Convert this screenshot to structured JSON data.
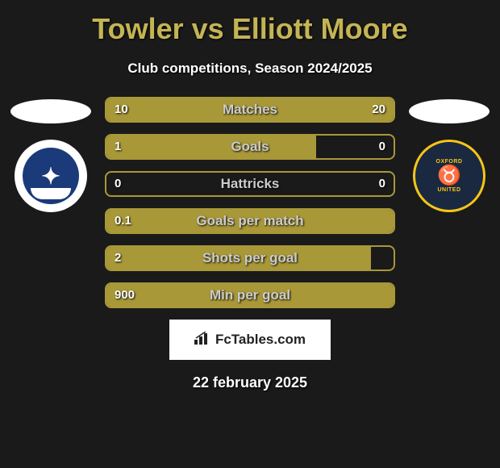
{
  "title": "Towler vs Elliott Moore",
  "subtitle": "Club competitions, Season 2024/2025",
  "player_left": {
    "name": "Towler",
    "club": "Portsmouth"
  },
  "player_right": {
    "name": "Elliott Moore",
    "club": "Oxford United"
  },
  "stats": [
    {
      "label": "Matches",
      "left_val": "10",
      "right_val": "20",
      "left_pct": 33.3,
      "right_pct": 66.7
    },
    {
      "label": "Goals",
      "left_val": "1",
      "right_val": "0",
      "left_pct": 73,
      "right_pct": 0
    },
    {
      "label": "Hattricks",
      "left_val": "0",
      "right_val": "0",
      "left_pct": 0,
      "right_pct": 0
    },
    {
      "label": "Goals per match",
      "left_val": "0.1",
      "right_val": "",
      "left_pct": 100,
      "right_pct": 0
    },
    {
      "label": "Shots per goal",
      "left_val": "2",
      "right_val": "",
      "left_pct": 92,
      "right_pct": 0
    },
    {
      "label": "Min per goal",
      "left_val": "900",
      "right_val": "",
      "left_pct": 100,
      "right_pct": 0
    }
  ],
  "colors": {
    "accent": "#a89838",
    "title": "#c4b454",
    "background": "#1a1a1a",
    "text": "#ffffff"
  },
  "watermark": "FcTables.com",
  "date": "22 february 2025",
  "oxford_badge": {
    "top": "OXFORD",
    "bottom": "UNITED"
  }
}
